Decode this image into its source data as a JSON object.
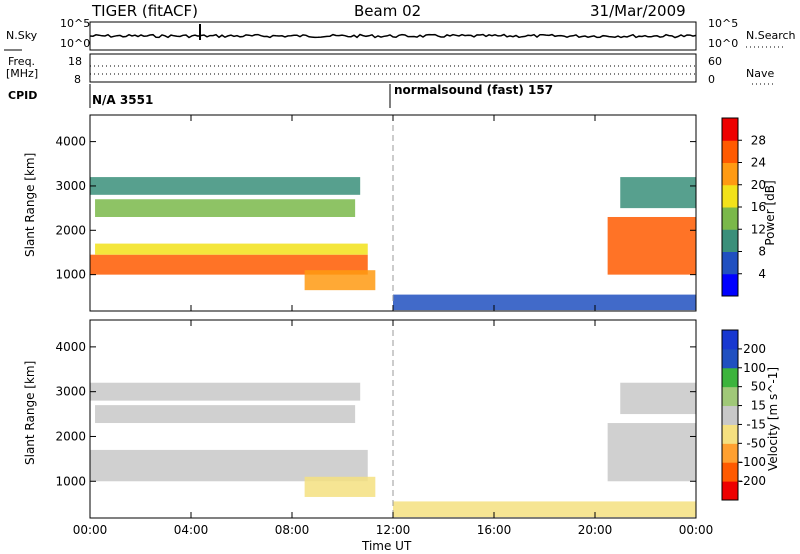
{
  "header": {
    "radar": "TIGER (fitACF)",
    "beam": "Beam 02",
    "date": "31/Mar/2009"
  },
  "summary_panel": {
    "left_label_top": "N.Sky",
    "left_label_freq_line1": "Freq.",
    "left_label_freq_line2": "[MHz]",
    "left_label_cpid": "CPID",
    "sky_ticks": [
      "10^5",
      "10^0"
    ],
    "freq_ticks": [
      "18",
      "8"
    ],
    "right_label_top": "N.Search",
    "right_label_nave": "Nave",
    "search_ticks": [
      "10^5",
      "10^0"
    ],
    "nave_ticks": [
      "60",
      "0"
    ],
    "cpid_left": "N/A 3551",
    "cpid_right": "normalsound (fast) 157"
  },
  "colors": {
    "power_scale": [
      "#0000ff",
      "#2050c0",
      "#3a8f7a",
      "#7ab84a",
      "#f2e21a",
      "#ff9a12",
      "#ff5a00",
      "#ee0000"
    ],
    "velocity_scale": [
      "#ee0000",
      "#ff5a00",
      "#ffa030",
      "#f5e080",
      "#c8c8c8",
      "#a0c878",
      "#3cb43c",
      "#2050c0",
      "#1838d0"
    ]
  },
  "chart_data": [
    {
      "type": "heatmap",
      "title": "",
      "ylabel": "Slant Range [km]",
      "xlabel": "Time UT",
      "x_ticks": [
        "00:00",
        "04:00",
        "08:00",
        "12:00",
        "16:00",
        "20:00",
        "00:00"
      ],
      "y_ticks": [
        "1000",
        "2000",
        "3000",
        "4000"
      ],
      "ylim": [
        180,
        4600
      ],
      "xlim_hours": [
        0,
        24
      ],
      "colorbar": {
        "label": "Power [dB]",
        "ticks": [
          "4",
          "8",
          "12",
          "16",
          "20",
          "24",
          "28"
        ],
        "range": [
          0,
          32
        ]
      },
      "regions": [
        {
          "t0": 0.0,
          "t1": 11.0,
          "r0": 1000,
          "r1": 1450,
          "level": 27
        },
        {
          "t0": 0.2,
          "t1": 11.0,
          "r0": 1450,
          "r1": 1700,
          "level": 18
        },
        {
          "t0": 0.2,
          "t1": 10.5,
          "r0": 2300,
          "r1": 2700,
          "level": 13
        },
        {
          "t0": 0.0,
          "t1": 10.7,
          "r0": 2800,
          "r1": 3200,
          "level": 10
        },
        {
          "t0": 8.5,
          "t1": 11.3,
          "r0": 650,
          "r1": 1100,
          "level": 22
        },
        {
          "t0": 12.0,
          "t1": 24.0,
          "r0": 200,
          "r1": 550,
          "level": 6
        },
        {
          "t0": 20.5,
          "t1": 24.0,
          "r0": 1000,
          "r1": 2300,
          "level": 24
        },
        {
          "t0": 21.0,
          "t1": 24.0,
          "r0": 2500,
          "r1": 3200,
          "level": 10
        }
      ]
    },
    {
      "type": "heatmap",
      "title": "",
      "ylabel": "Slant Range [km]",
      "xlabel": "Time UT",
      "x_ticks": [
        "00:00",
        "04:00",
        "08:00",
        "12:00",
        "16:00",
        "20:00",
        "00:00"
      ],
      "y_ticks": [
        "1000",
        "2000",
        "3000",
        "4000"
      ],
      "ylim": [
        180,
        4600
      ],
      "xlim_hours": [
        0,
        24
      ],
      "colorbar": {
        "label": "Velocity [m s^-1]",
        "ticks": [
          "200",
          "100",
          "50",
          "15",
          "-15",
          "-50",
          "-100",
          "-200"
        ],
        "range": [
          -250,
          250
        ]
      },
      "regions": [
        {
          "t0": 0.0,
          "t1": 11.0,
          "r0": 1000,
          "r1": 1700,
          "level": 0
        },
        {
          "t0": 0.2,
          "t1": 10.5,
          "r0": 2300,
          "r1": 2700,
          "level": 0
        },
        {
          "t0": 0.0,
          "t1": 10.7,
          "r0": 2800,
          "r1": 3200,
          "level": 0
        },
        {
          "t0": 8.5,
          "t1": 11.3,
          "r0": 650,
          "r1": 1100,
          "level": -40
        },
        {
          "t0": 12.0,
          "t1": 24.0,
          "r0": 200,
          "r1": 550,
          "level": -30
        },
        {
          "t0": 20.5,
          "t1": 24.0,
          "r0": 1000,
          "r1": 2300,
          "level": 10
        },
        {
          "t0": 21.0,
          "t1": 24.0,
          "r0": 2500,
          "r1": 3200,
          "level": 10
        }
      ]
    }
  ]
}
